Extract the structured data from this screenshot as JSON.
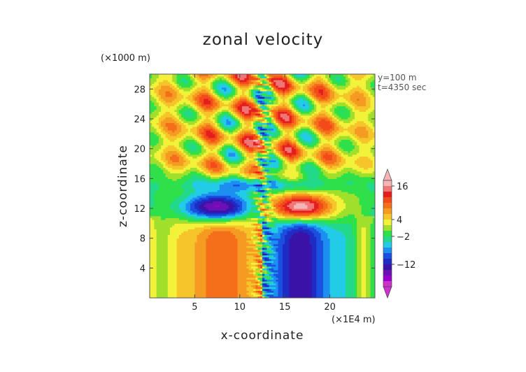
{
  "chart_data": {
    "type": "heatmap",
    "title": "zonal velocity",
    "xlabel": "x-coordinate",
    "ylabel": "z-coordinate",
    "x_unit": "(×1E4 m)",
    "y_unit": "(×1000 m)",
    "annotations": [
      "y=100 m",
      "t=4350 sec"
    ],
    "xlim": [
      0,
      25
    ],
    "ylim": [
      0,
      30
    ],
    "x_ticks": [
      5,
      10,
      15,
      20
    ],
    "y_ticks": [
      4,
      8,
      12,
      16,
      20,
      24,
      28
    ],
    "colorbar": {
      "labels": [
        16,
        4,
        -2,
        -12
      ],
      "levels": [
        -18,
        -16,
        -14,
        -12,
        -10,
        -8,
        -6,
        -4,
        -2,
        0,
        2,
        4,
        6,
        8,
        10,
        12,
        14,
        16,
        18
      ],
      "colors": [
        "#cc33cc",
        "#9900cc",
        "#6a11b5",
        "#3a13a8",
        "#1f2cc4",
        "#1a50e0",
        "#1d8ff0",
        "#22cce6",
        "#22d98a",
        "#2ee04a",
        "#a0e02c",
        "#f2f23a",
        "#f5c52a",
        "#f59b22",
        "#f56e1a",
        "#f24a1a",
        "#e41e1e",
        "#f07676",
        "#f7b4b4"
      ]
    }
  }
}
